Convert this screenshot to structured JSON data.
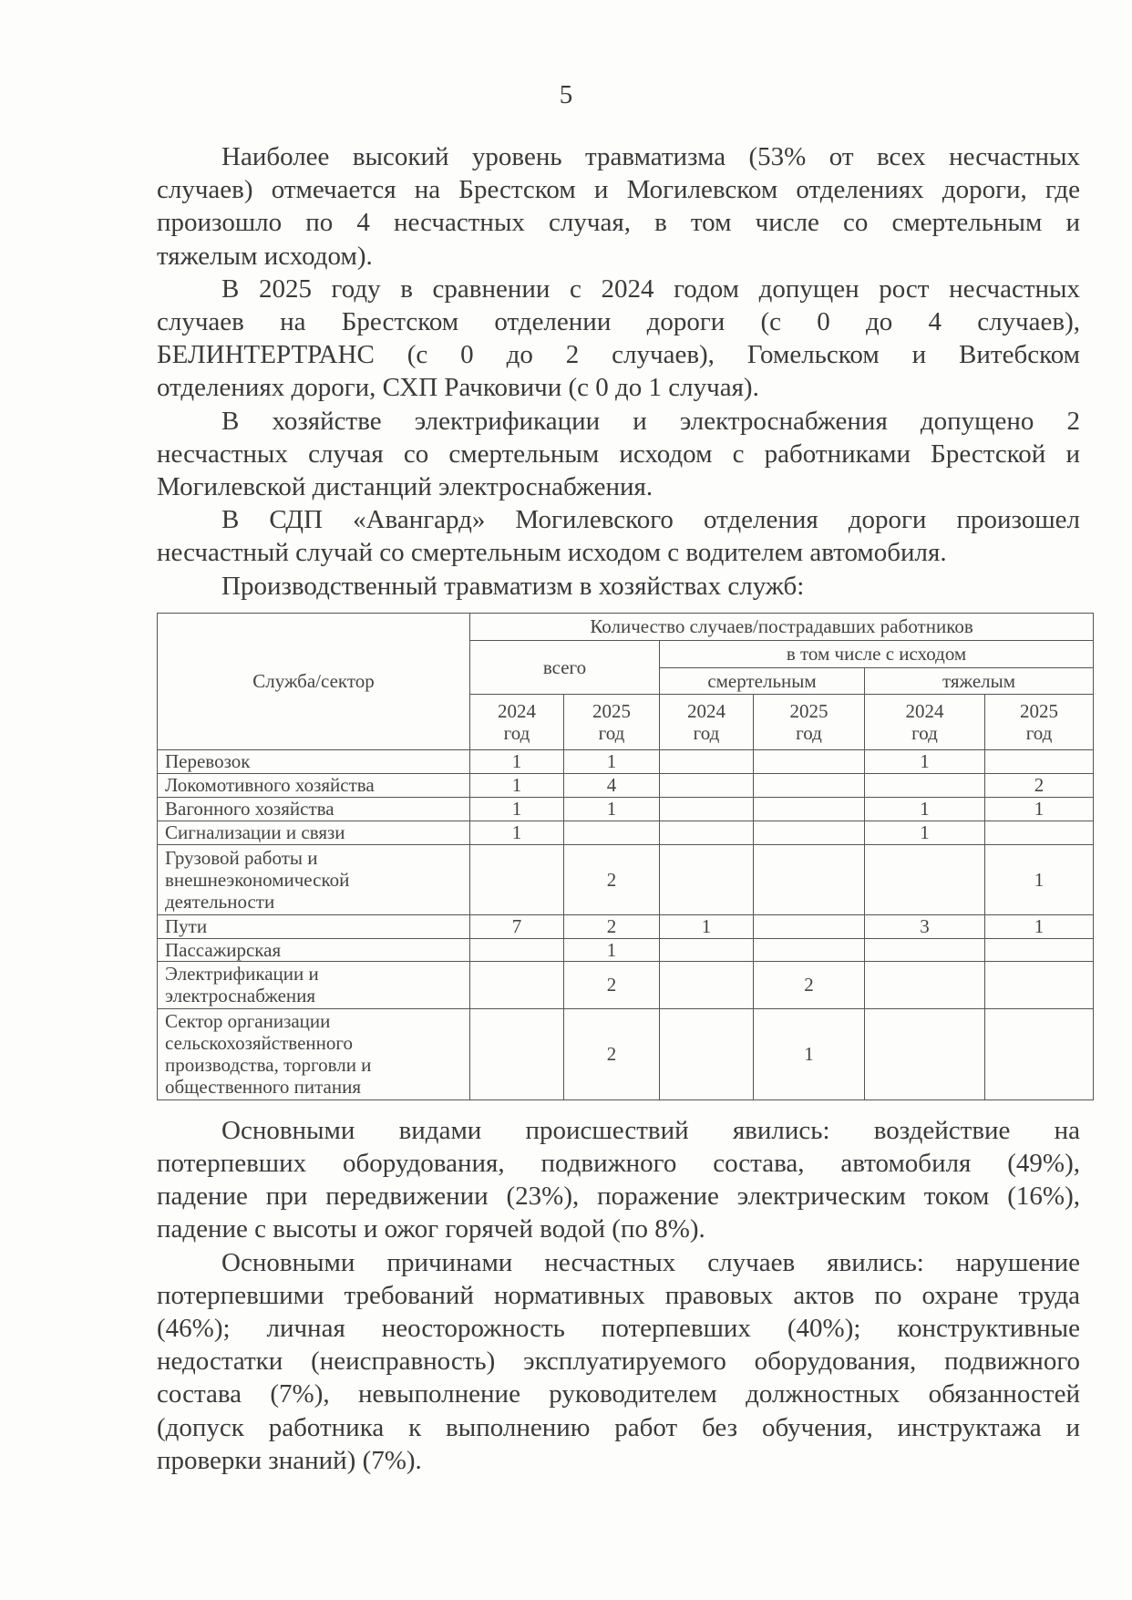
{
  "page_number": "5",
  "paragraphs_top": [
    [
      "Наиболее высокий уровень травматизма (53% от всех несчастных",
      "случаев) отмечается на Брестском и Могилевском отделениях дороги, где",
      "произошло по 4 несчастных случая, в том числе со смертельным и",
      "тяжелым исходом)."
    ],
    [
      "В 2025 году в сравнении с 2024 годом допущен рост несчастных",
      "случаев на Брестском отделении дороги (с 0 до 4 случаев),",
      "БЕЛИНТЕРТРАНС (с 0 до 2 случаев), Гомельском и Витебском",
      "отделениях дороги, СХП Рачковичи (с 0 до 1 случая)."
    ],
    [
      "В хозяйстве электрификации и электроснабжения допущено 2",
      "несчастных случая со смертельным исходом с работниками Брестской и",
      "Могилевской дистанций электроснабжения."
    ],
    [
      "В СДП «Авангард» Могилевского отделения дороги произошел",
      "несчастный случай со смертельным исходом с водителем автомобиля."
    ],
    [
      "Производственный травматизм в хозяйствах служб:"
    ]
  ],
  "table": {
    "header": {
      "service": "Служба/сектор",
      "count": "Количество случаев/пострадавших работников",
      "total": "всего",
      "including": "в том числе с исходом",
      "fatal": "смертельным",
      "severe": "тяжелым",
      "years": [
        "2024 год",
        "2025 год",
        "2024 год",
        "2025 год",
        "2024 год",
        "2025 год"
      ]
    },
    "rows": [
      {
        "name": "Перевозок",
        "values": [
          "1",
          "1",
          "",
          "",
          "1",
          ""
        ]
      },
      {
        "name": "Локомотивного хозяйства",
        "values": [
          "1",
          "4",
          "",
          "",
          "",
          "2"
        ]
      },
      {
        "name": "Вагонного хозяйства",
        "values": [
          "1",
          "1",
          "",
          "",
          "1",
          "1"
        ]
      },
      {
        "name": "Сигнализации и связи",
        "values": [
          "1",
          "",
          "",
          "",
          "1",
          ""
        ]
      },
      {
        "name": "Грузовой работы и внешнеэкономической деятельности",
        "values": [
          "",
          "2",
          "",
          "",
          "",
          "1"
        ]
      },
      {
        "name": "Пути",
        "values": [
          "7",
          "2",
          "1",
          "",
          "3",
          "1"
        ]
      },
      {
        "name": "Пассажирская",
        "values": [
          "",
          "1",
          "",
          "",
          "",
          ""
        ]
      },
      {
        "name": "Электрификации и электроснабжения",
        "values": [
          "",
          "2",
          "",
          "2",
          "",
          ""
        ]
      },
      {
        "name": "Сектор организации сельскохозяйственного производства, торговли и общественного питания",
        "values": [
          "",
          "2",
          "",
          "1",
          "",
          ""
        ]
      }
    ]
  },
  "paragraphs_bottom": [
    [
      "Основными видами происшествий явились: воздействие на",
      "потерпевших оборудования, подвижного состава, автомобиля (49%),",
      "падение при передвижении (23%), поражение электрическим током (16%),",
      "падение с высоты и ожог горячей водой (по 8%)."
    ],
    [
      "Основными причинами несчастных случаев явились: нарушение",
      "потерпевшими требований нормативных правовых актов по охране труда",
      "(46%); личная неосторожность потерпевших (40%); конструктивные",
      "недостатки (неисправность) эксплуатируемого оборудования, подвижного",
      "состава (7%), невыполнение руководителем должностных обязанностей",
      "(допуск работника к выполнению работ без обучения, инструктажа и",
      "проверки знаний) (7%)."
    ]
  ]
}
